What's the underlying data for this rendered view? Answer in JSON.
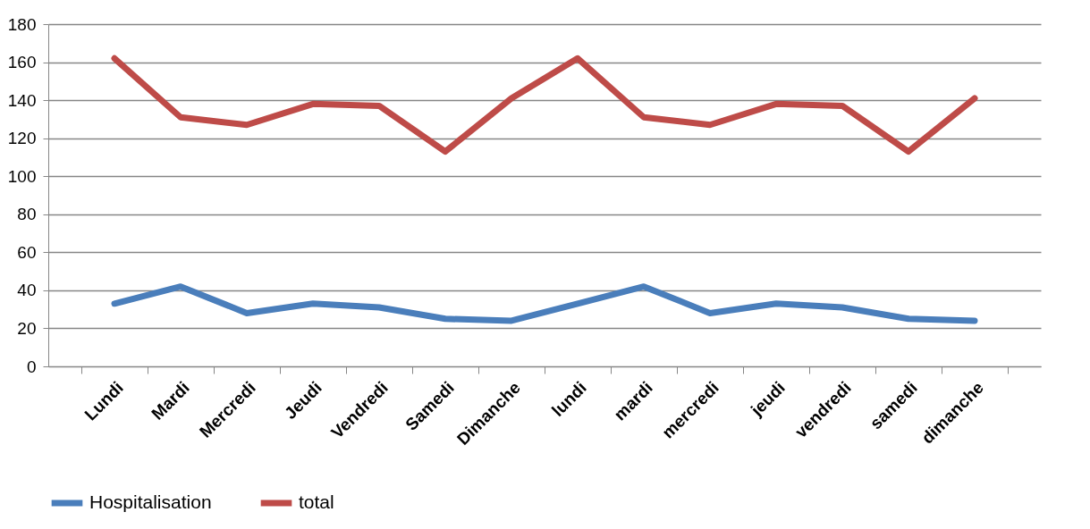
{
  "chart_data": {
    "type": "line",
    "categories": [
      "Lundi",
      "Mardi",
      "Mercredi",
      "Jeudi",
      "Vendredi",
      "Samedi",
      "Dimanche",
      "lundi",
      "mardi",
      "mercredi",
      "jeudi",
      "vendredi",
      "samedi",
      "dimanche"
    ],
    "series": [
      {
        "name": "Hospitalisation",
        "color": "#4a7ebb",
        "values": [
          33,
          42,
          28,
          33,
          31,
          25,
          24,
          33,
          42,
          28,
          33,
          31,
          25,
          24
        ]
      },
      {
        "name": "total",
        "color": "#be4b48",
        "values": [
          162,
          131,
          127,
          138,
          137,
          113,
          141,
          162,
          131,
          127,
          138,
          137,
          113,
          141
        ]
      }
    ],
    "ylim": [
      0,
      180
    ],
    "yticks": [
      0,
      20,
      40,
      60,
      80,
      100,
      120,
      140,
      160,
      180
    ],
    "grid": "y",
    "legend": "bottom",
    "marker": "none",
    "line_style": "solid"
  }
}
